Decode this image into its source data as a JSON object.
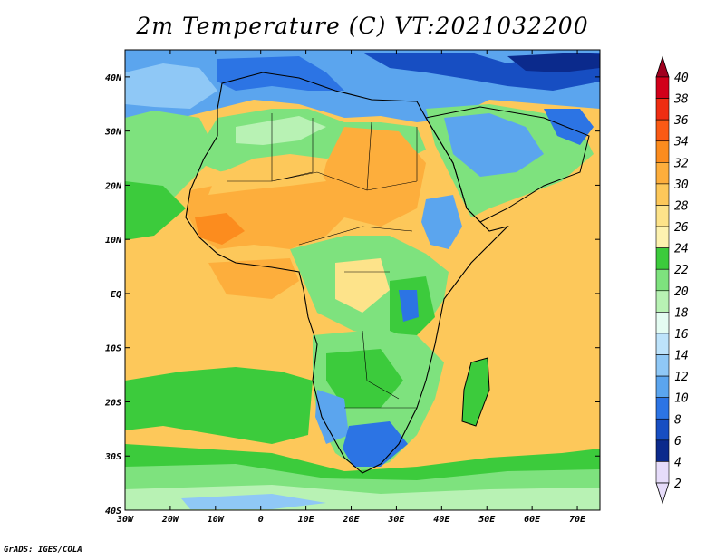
{
  "title": "2m Temperature (C) VT:2021032200",
  "credit": "GrADS: IGES/COLA",
  "map": {
    "lon_range": [
      -30,
      75
    ],
    "lat_range": [
      -40,
      45
    ],
    "lon_ticks": [
      {
        "value": -30,
        "label": "30W"
      },
      {
        "value": -20,
        "label": "20W"
      },
      {
        "value": -10,
        "label": "10W"
      },
      {
        "value": 0,
        "label": "0"
      },
      {
        "value": 10,
        "label": "10E"
      },
      {
        "value": 20,
        "label": "20E"
      },
      {
        "value": 30,
        "label": "30E"
      },
      {
        "value": 40,
        "label": "40E"
      },
      {
        "value": 50,
        "label": "50E"
      },
      {
        "value": 60,
        "label": "60E"
      },
      {
        "value": 70,
        "label": "70E"
      }
    ],
    "lat_ticks": [
      {
        "value": 40,
        "label": "40N"
      },
      {
        "value": 30,
        "label": "30N"
      },
      {
        "value": 20,
        "label": "20N"
      },
      {
        "value": 10,
        "label": "10N"
      },
      {
        "value": 0,
        "label": "EQ"
      },
      {
        "value": -10,
        "label": "10S"
      },
      {
        "value": -20,
        "label": "20S"
      },
      {
        "value": -30,
        "label": "30S"
      },
      {
        "value": -40,
        "label": "40S"
      }
    ]
  },
  "colorbar": {
    "levels": [
      {
        "label": "40",
        "color": "#a0001e"
      },
      {
        "label": "38",
        "color": "#d2001a"
      },
      {
        "label": "36",
        "color": "#ef2d12"
      },
      {
        "label": "34",
        "color": "#fa5a14"
      },
      {
        "label": "32",
        "color": "#fc8c1e"
      },
      {
        "label": "30",
        "color": "#fdae3c"
      },
      {
        "label": "28",
        "color": "#fdc85a"
      },
      {
        "label": "26",
        "color": "#fde38a"
      },
      {
        "label": "24",
        "color": "#fdf2b0"
      },
      {
        "label": "22",
        "color": "#3ccb3c"
      },
      {
        "label": "20",
        "color": "#7ee27e"
      },
      {
        "label": "18",
        "color": "#b8f2b4"
      },
      {
        "label": "16",
        "color": "#e4fcf2"
      },
      {
        "label": "14",
        "color": "#bde3fb"
      },
      {
        "label": "12",
        "color": "#8fc8f6"
      },
      {
        "label": "10",
        "color": "#5ba5ee"
      },
      {
        "label": "8",
        "color": "#2c74e4"
      },
      {
        "label": "6",
        "color": "#174ec2"
      },
      {
        "label": "4",
        "color": "#0b2a8c"
      },
      {
        "label": "2",
        "color": "#e6dcfa"
      }
    ],
    "over_color": "#a0001e",
    "under_color": "#e6dcfa"
  }
}
